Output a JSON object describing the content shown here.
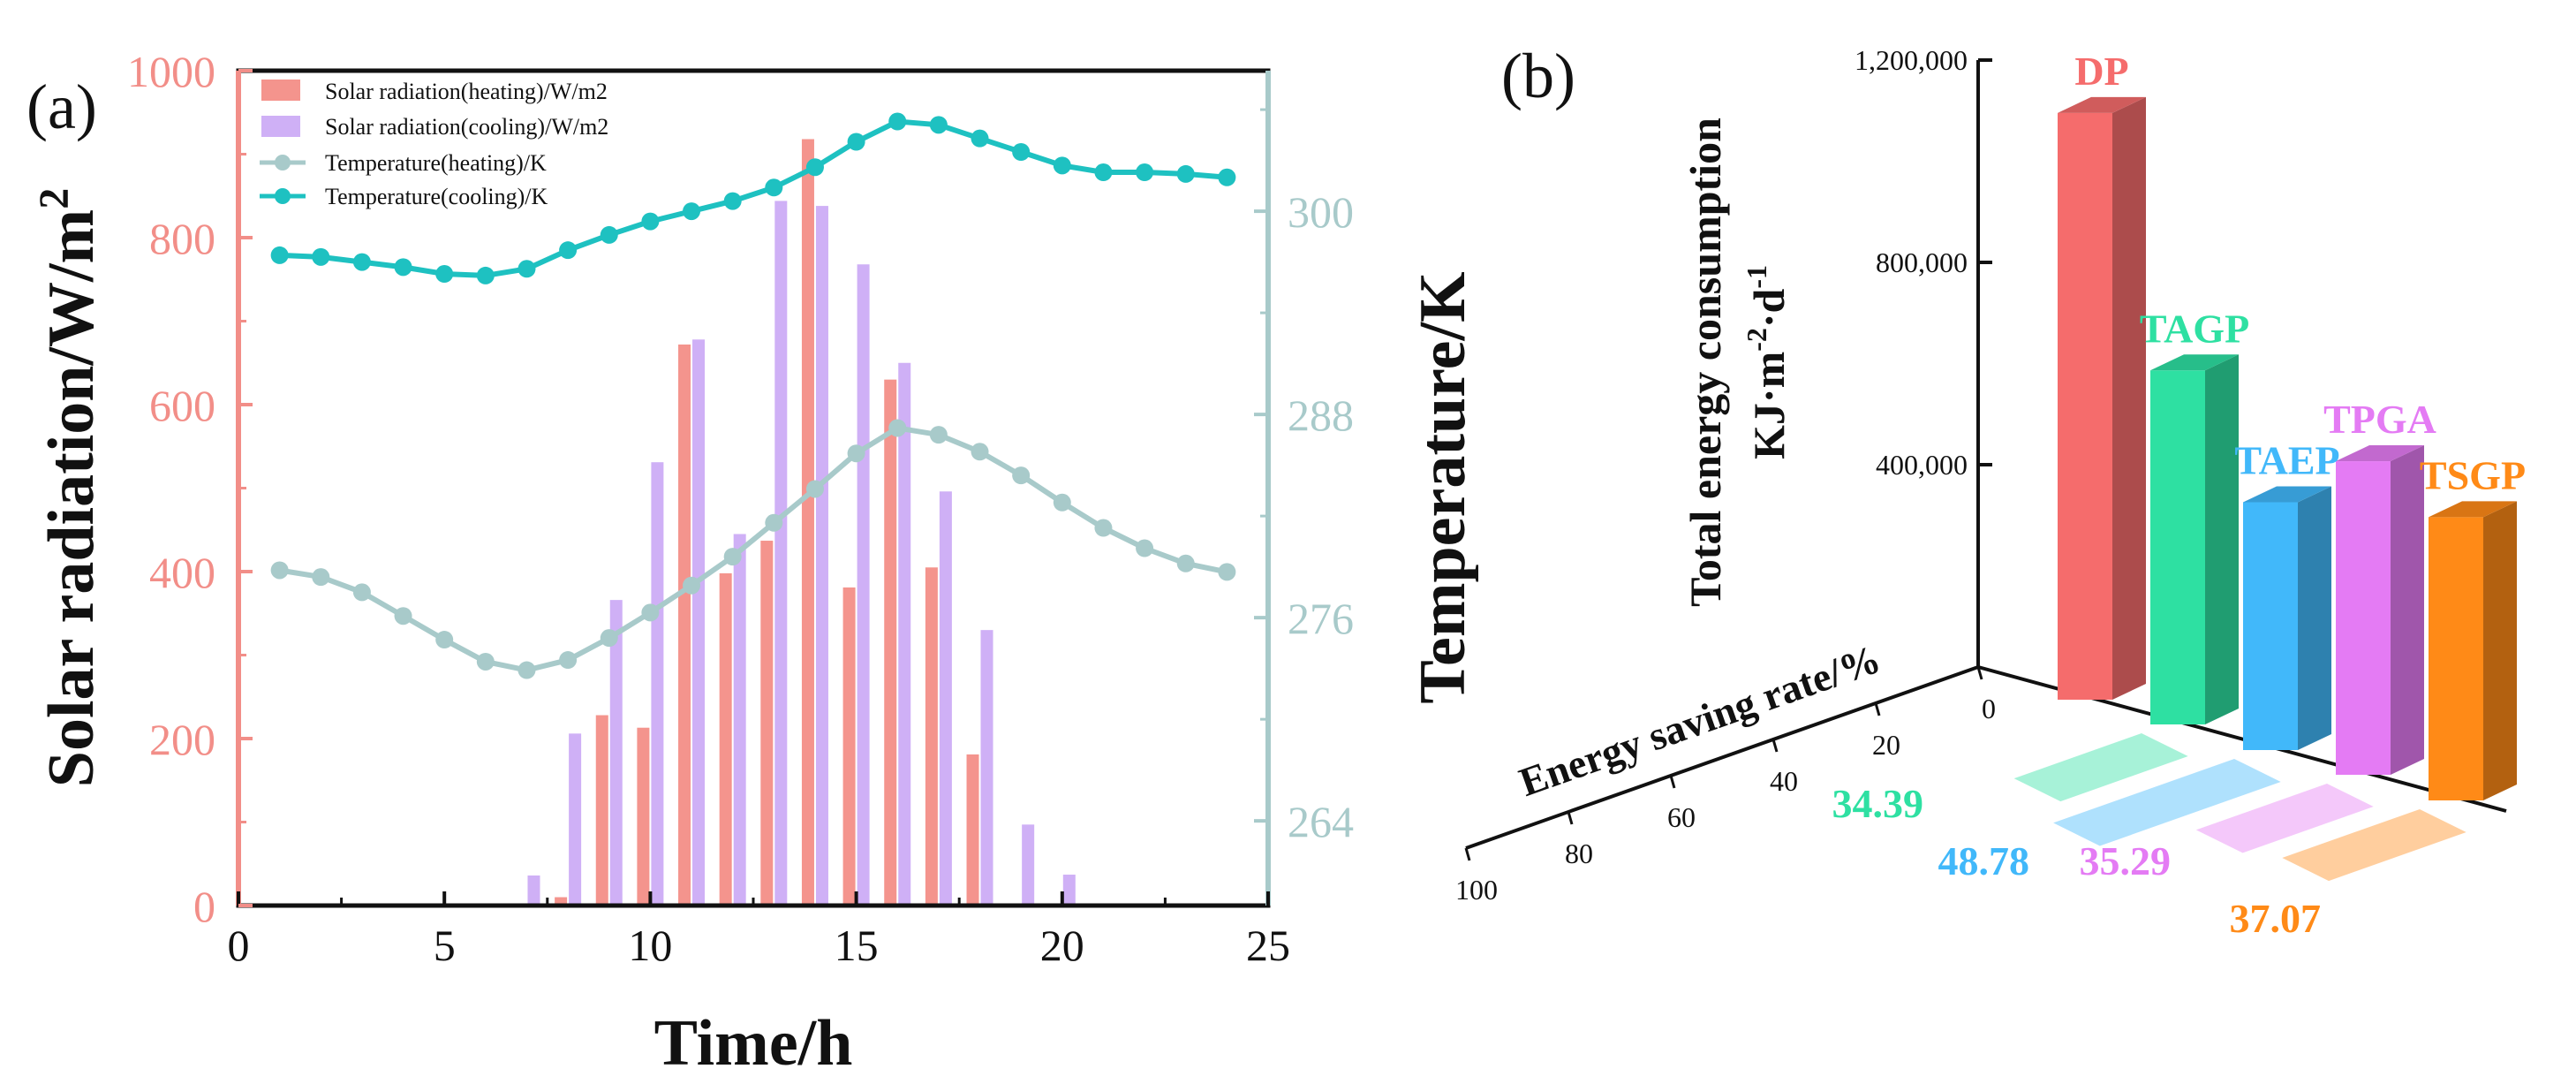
{
  "colors": {
    "heat_bar": "#F4948D",
    "cool_bar": "#CFB0F6",
    "heat_line": "#A8CACA",
    "cool_line": "#1EC1C1",
    "left_axis": "#F28E88",
    "right_axis": "#A8CACA",
    "DP": "#F56C6C",
    "TAGP": "#2EE0A2",
    "TAEP": "#41B8FA",
    "TPGA": "#E47BF4",
    "TSGP": "#FF8A17"
  },
  "chart_data": [
    {
      "panel": "(a)",
      "type": "bar+line",
      "xlabel": "Time/h",
      "ylabel_left": "Solar radiation/W/m",
      "ylabel_left_sup": "2",
      "ylabel_right": "Temperature/K",
      "xlim": [
        0,
        25
      ],
      "xticks": [
        "0",
        "5",
        "10",
        "15",
        "20",
        "25"
      ],
      "ylim_left": [
        0,
        1000
      ],
      "yticks_left": [
        "0",
        "200",
        "400",
        "600",
        "800",
        "1000"
      ],
      "ylim_right": [
        259,
        308.3
      ],
      "yticks_right": [
        "264",
        "276",
        "288",
        "300"
      ],
      "x": [
        1,
        2,
        3,
        4,
        5,
        6,
        7,
        8,
        9,
        10,
        11,
        12,
        13,
        14,
        15,
        16,
        17,
        18,
        19,
        20,
        21,
        22,
        23,
        24
      ],
      "series": [
        {
          "name": "Solar radiation(heating)/W/m2",
          "type": "bar",
          "values": [
            0,
            0,
            0,
            0,
            0,
            0,
            0,
            10,
            228,
            213,
            672,
            398,
            437,
            918,
            381,
            630,
            405,
            181,
            0,
            0,
            0,
            0,
            0,
            0
          ]
        },
        {
          "name": "Solar radiation(cooling)/W/m2",
          "type": "bar",
          "values": [
            0,
            0,
            0,
            0,
            0,
            0,
            36,
            206,
            366,
            531,
            678,
            445,
            844,
            838,
            768,
            650,
            496,
            330,
            97,
            37,
            0,
            0,
            0,
            0
          ]
        },
        {
          "name": "Temperature(heating)/K",
          "type": "line",
          "values": [
            278.8,
            278.4,
            277.5,
            276.1,
            274.7,
            273.4,
            272.9,
            273.5,
            274.8,
            276.3,
            277.9,
            279.6,
            281.6,
            283.6,
            285.7,
            287.2,
            286.8,
            285.8,
            284.4,
            282.8,
            281.3,
            280.1,
            279.2,
            278.7
          ]
        },
        {
          "name": "Temperature(cooling)/K",
          "type": "line",
          "values": [
            297.4,
            297.3,
            297.0,
            296.7,
            296.3,
            296.2,
            296.6,
            297.7,
            298.6,
            299.4,
            300.0,
            300.6,
            301.4,
            302.6,
            304.1,
            305.3,
            305.1,
            304.3,
            303.5,
            302.7,
            302.3,
            302.3,
            302.2,
            302.0
          ]
        }
      ]
    },
    {
      "panel": "(b)",
      "type": "bar3d",
      "zlabel_line1": "Total energy consumption",
      "zlabel_line2_main": "KJ·m",
      "zlabel_line2_sup1": "-2",
      "zlabel_line2_mid": "·d",
      "zlabel_line2_sup2": "-1",
      "xlabel": "Energy saving rate/%",
      "zlim": [
        0,
        1200000
      ],
      "zticks": [
        "400,000",
        "800,000",
        "1,200,000"
      ],
      "xticks": [
        "0",
        "20",
        "40",
        "60",
        "80",
        "100"
      ],
      "categories": [
        "DP",
        "TAGP",
        "TAEP",
        "TPGA",
        "TSGP"
      ],
      "consumption": [
        1160000,
        700000,
        490000,
        620000,
        560000
      ],
      "saving_rate": [
        0,
        34.39,
        48.78,
        35.29,
        37.07
      ],
      "saving_labels": [
        "34.39",
        "48.78",
        "35.29",
        "37.07"
      ]
    }
  ]
}
